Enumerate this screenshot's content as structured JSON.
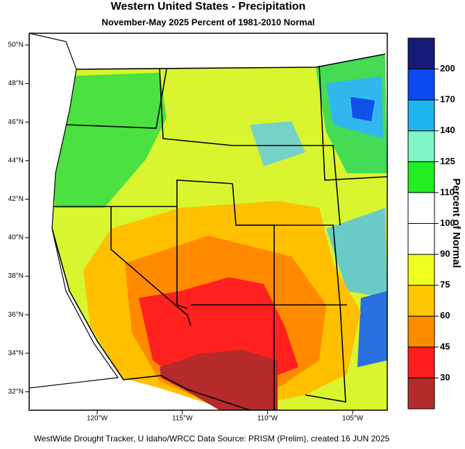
{
  "map": {
    "title": "Western United States - Precipitation",
    "subtitle": "November-May 2025  Percent of 1981-2010 Normal",
    "latitude_labels": [
      "50°N",
      "48°N",
      "46°N",
      "44°N",
      "42°N",
      "40°N",
      "38°N",
      "36°N",
      "34°N",
      "32°N"
    ],
    "longitude_labels": [
      "120°W",
      "115°W",
      "110°W",
      "105°W"
    ],
    "footer": "WestWide Drought Tracker, U Idaho/WRCC Data Source: PRISM (Prelim), created 16 JUN 2025"
  },
  "legend": {
    "title": "Percent of Normal",
    "levels": [
      30,
      45,
      60,
      75,
      90,
      100,
      110,
      125,
      140,
      170,
      200
    ],
    "colors": [
      "#b52a2a",
      "#ff1c1c",
      "#ff8c00",
      "#ffc800",
      "#eeff1e",
      "#ffffff",
      "#ffffff",
      "#22ee22",
      "#80f5c8",
      "#1eb4f0",
      "#0a4af0",
      "#161a78"
    ]
  }
}
